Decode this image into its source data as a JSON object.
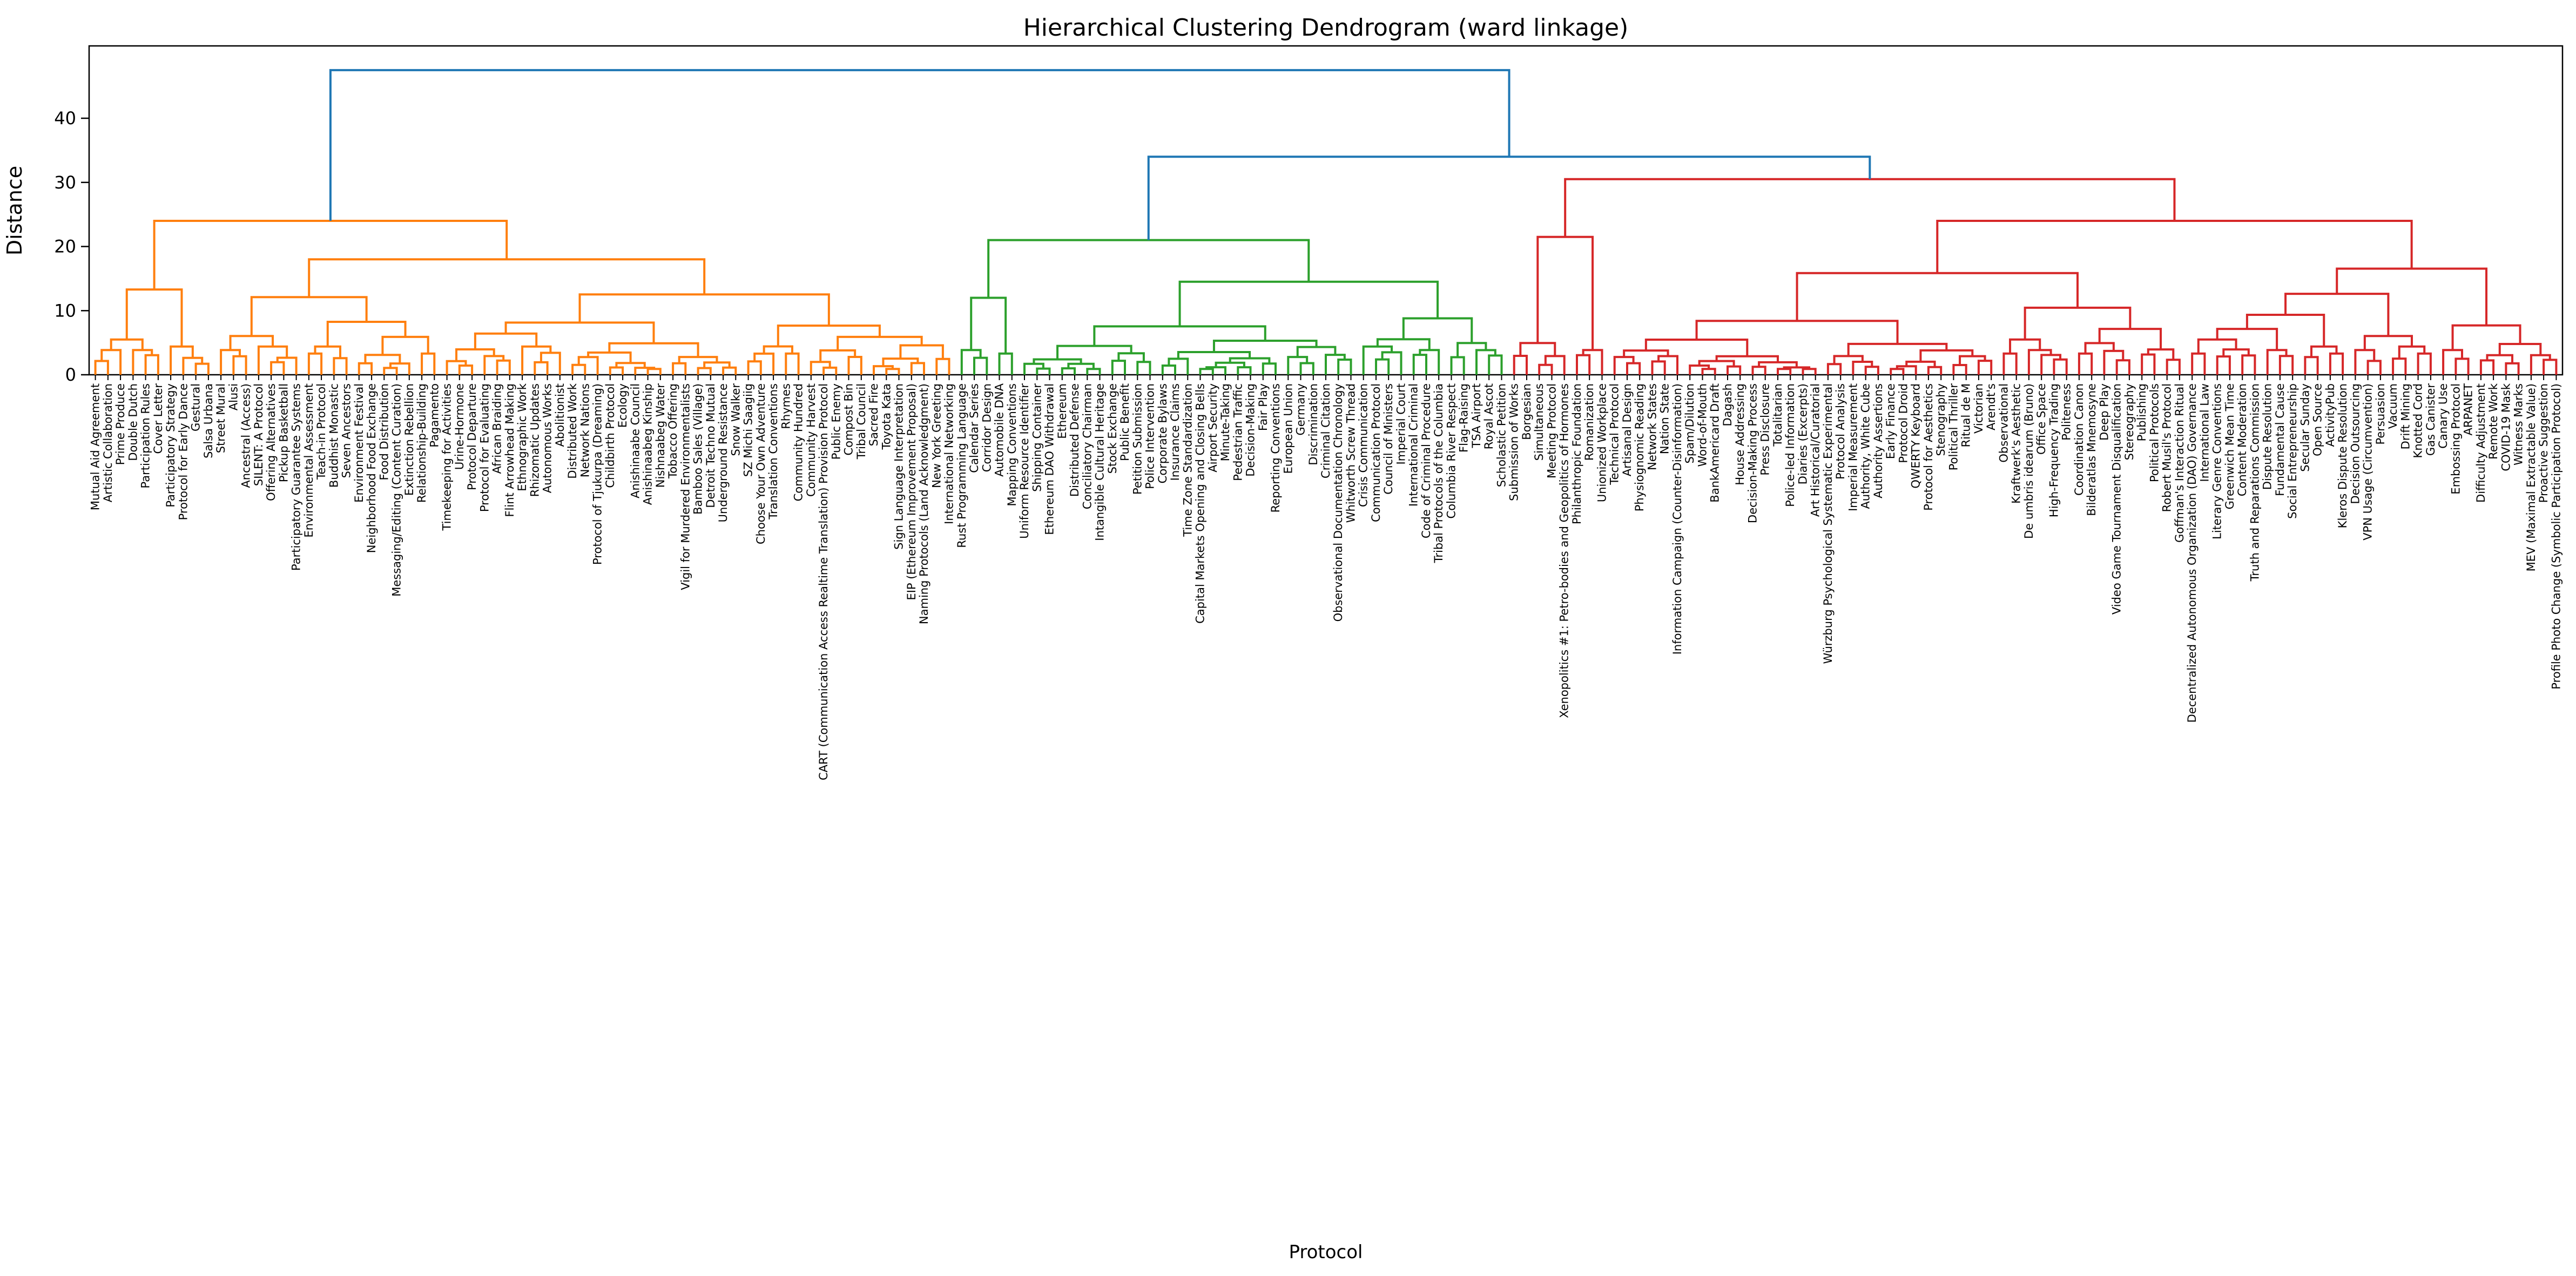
{
  "chart_data": {
    "type": "dendrogram",
    "title": "Hierarchical Clustering Dendrogram (ward linkage)",
    "xlabel": "Protocol",
    "ylabel": "Distance",
    "y_ticks": [
      0,
      10,
      20,
      30,
      40
    ],
    "ylim": [
      0,
      51.3
    ],
    "grid": false,
    "legend": "none",
    "linkage": "ward",
    "top_link_color": "#1f77b4",
    "axis_color": "#000000",
    "background_color": "#ffffff",
    "root_merge_height": 47.5,
    "green_red_merge_height": 34,
    "clusters": [
      {
        "name": "cluster-orange",
        "color": "#ff7f0e",
        "root_height": 24,
        "first_split": {
          "left_fraction": 0.15,
          "left_height": 13.3,
          "right_height": 18
        },
        "seed": 7,
        "labels": [
          "Mutual Aid Agreement",
          "Artistic Collaboration",
          "Prime Produce",
          "Double Dutch",
          "Participation Rules",
          "Cover Letter",
          "Participatory Strategy",
          "Protocol for Early Dance",
          "Gestural",
          "Salsa Urbana",
          "Street Mural",
          "Alusi",
          "Ancestral (Access)",
          "SILENT: A Protocol",
          "Offering Alternatives",
          "Pickup Basketball",
          "Participatory Guarantee Systems",
          "Environmental Assessment",
          "Teach-in Protocol",
          "Buddhist Monastic",
          "Seven Ancestors",
          "Environment Festival",
          "Neighborhood Food Exchange",
          "Food Distribution",
          "Messaging/Editing (Content Curation)",
          "Extinction Rebellion",
          "Relationship-Building",
          "Pagamento",
          "Timekeeping for Activities",
          "Urine-Hormone",
          "Protocol Departure",
          "Protocol for Evaluating",
          "African Braiding",
          "Flint Arrowhead Making",
          "Ethnographic Work",
          "Rhizomatic Updates",
          "Autonomous Works",
          "Abolitionist",
          "Distributed Work",
          "Network Nations",
          "Protocol of Tjukurpa (Dreaming)",
          "Childbirth Protocol",
          "Ecology",
          "Anishinaabe Council",
          "Anishinaabeg Kinship",
          "Nishnaabeg Water",
          "Tobacco Offering",
          "Vigil for Murdered Environmentalists",
          "Bamboo Sales (Village)",
          "Detroit Techno Mutual",
          "Underground Resistance",
          "Snow Walker",
          "SZ Michi Saagiig",
          "Choose Your Own Adventure",
          "Translation Conventions",
          "Rhymes",
          "Community Hundred",
          "Community Harvest",
          "CART (Communication Access Realtime Translation) Provision Protocol",
          "Public Enemy",
          "Compost Bin",
          "Tribal Council",
          "Sacred Fire",
          "Toyota Kata",
          "Sign Language Interpretation",
          "EIP (Ethereum Improvement Proposal)",
          "Naming Protocols (Land Acknowledgment)",
          "New York Greeting",
          "International Networking"
        ]
      },
      {
        "name": "cluster-green",
        "color": "#2ca02c",
        "root_height": 21,
        "first_split": {
          "left_fraction": 0.12,
          "left_height": 12,
          "right_height": 14.5
        },
        "seed": 13,
        "labels": [
          "Rust Programming Language",
          "Calendar Series",
          "Corridor Design",
          "Automobile DNA",
          "Mapping Conventions",
          "Uniform Resource Identifier",
          "Shipping Container",
          "Ethereum DAO Withdrawal",
          "Ethereum",
          "Distributed Defense",
          "Conciliatory Chairman",
          "Intangible Cultural Heritage",
          "Stock Exchange",
          "Public Benefit",
          "Petition Submission",
          "Police Intervention",
          "Corporate Bylaws",
          "Insurance Claims",
          "Time Zone Standardization",
          "Capital Markets Opening and Closing Bells",
          "Airport Security",
          "Minute-Taking",
          "Pedestrian Traffic",
          "Decision-Making",
          "Fair Play",
          "Reporting Conventions",
          "European Union",
          "Germany",
          "Discrimination",
          "Criminal Citation",
          "Observational Documentation Chronology",
          "Whitworth Screw Thread",
          "Crisis Communication",
          "Communication Protocol",
          "Council of Ministers",
          "Imperial Court",
          "International Criminal",
          "Code of Criminal Procedure",
          "Tribal Protocols of the Columbia",
          "Columbia River Respect",
          "Flag-Raising",
          "TSA Airport",
          "Royal Ascot",
          "Scholastic Petition"
        ]
      },
      {
        "name": "cluster-red",
        "color": "#d62728",
        "root_height": 30.5,
        "first_split": {
          "left_fraction": 0.09,
          "left_height": 21.5,
          "right_height": 24
        },
        "seed": 29,
        "labels": [
          "Submission of Works",
          "Borgesian",
          "Simultaneous",
          "Meeting Protocol",
          "Xenopolitics #1: Petro-bodies and Geopolitics of Hormones",
          "Philanthropic Foundation",
          "Romanization",
          "Unionized Workplace",
          "Technical Protocol",
          "Artisanal Design",
          "Physiognomic Reading",
          "Network States",
          "Nation State",
          "Information Campaign (Counter-Disinformation)",
          "Spam/Dilution",
          "Word-of-Mouth",
          "BankAmericard Draft",
          "Dagash",
          "House Addressing",
          "Decision-Making Process",
          "Press Disclosure",
          "Totalitarian",
          "Police-led Information",
          "Diaries (Excerpts)",
          "Art Historical/Curatorial",
          "Würzburg Psychological Systematic Experimental",
          "Protocol Analysis",
          "Imperial Measurement",
          "Authority, White Cube",
          "Authority Assertions",
          "Early Finance",
          "Protocol Droid",
          "QWERTY Keyboard",
          "Protocol for Aesthetics",
          "Stenography",
          "Political Thriller",
          "Ritual de M",
          "Victorian",
          "Arendt's",
          "Observational",
          "Kraftwerk's Aesthetic",
          "De umbris idearum (Bruno)",
          "Office Space",
          "High-Frequency Trading",
          "Politeness",
          "Coordination Canon",
          "Bilderatlas Mnemosyne",
          "Deep Play",
          "Video Game Tournament Disqualification",
          "Stereography",
          "Publishing",
          "Political Protocols",
          "Robert Musil's Protocol",
          "Goffman's Interaction Ritual",
          "Decentralized Autonomous Organization (DAO) Governance",
          "International Law",
          "Literary Genre Conventions",
          "Greenwich Mean Time",
          "Content Moderation",
          "Truth and Reparations Commission",
          "Dispute Resolution",
          "Fundamental Cause",
          "Social Entrepreneurship",
          "Secular Sunday",
          "Open Source",
          "ActivityPub",
          "Kleros Dispute Resolution",
          "Decision Outsourcing",
          "VPN Usage (Circumvention)",
          "Persuasion",
          "Vacuum",
          "Drift Mining",
          "Knotted Cord",
          "Gas Canister",
          "Canary Use",
          "Embossing Protocol",
          "ARPANET",
          "Difficulty Adjustment",
          "Remote Work",
          "COVID-19 Mask",
          "Witness Marks",
          "MEV (Maximal Extractable Value)",
          "Proactive Suggestion",
          "Profile Photo Change (Symbolic Participation Protocol)"
        ]
      }
    ]
  }
}
